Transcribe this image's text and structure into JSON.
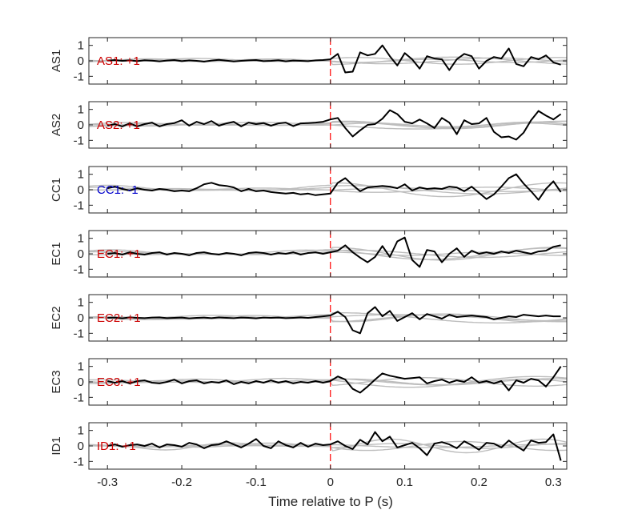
{
  "chart_data": {
    "type": "line",
    "xlabel": "Time relative to P (s)",
    "xlim": [
      -0.325,
      0.318
    ],
    "xticks": [
      -0.3,
      -0.2,
      -0.1,
      0,
      0.1,
      0.2,
      0.3
    ],
    "xtick_labels": [
      "-0.3",
      "-0.2",
      "-0.1",
      "0",
      "0.1",
      "0.2",
      "0.3"
    ],
    "ylim": [
      -1.5,
      1.5
    ],
    "yticks": [
      1,
      0,
      -1
    ],
    "ytick_labels": [
      "1",
      "0",
      "-1"
    ],
    "marker_line": {
      "x": 0,
      "color": "#ff0000",
      "style": "dashed"
    },
    "colors": {
      "primary": "#000000",
      "background_traces": "#bdbdbd",
      "positive_label": "#cc0000",
      "negative_label": "#0000cc"
    },
    "panels": [
      {
        "ylabel": "AS1",
        "label": "AS1: +1",
        "polarity": "positive",
        "x": [
          -0.3,
          -0.29,
          -0.28,
          -0.27,
          -0.26,
          -0.25,
          -0.24,
          -0.23,
          -0.22,
          -0.21,
          -0.2,
          -0.19,
          -0.18,
          -0.17,
          -0.16,
          -0.15,
          -0.14,
          -0.13,
          -0.12,
          -0.11,
          -0.1,
          -0.09,
          -0.08,
          -0.07,
          -0.06,
          -0.05,
          -0.04,
          -0.03,
          -0.02,
          -0.01,
          0.0,
          0.01,
          0.02,
          0.03,
          0.04,
          0.05,
          0.06,
          0.07,
          0.08,
          0.09,
          0.1,
          0.11,
          0.12,
          0.13,
          0.14,
          0.15,
          0.16,
          0.17,
          0.18,
          0.19,
          0.2,
          0.21,
          0.22,
          0.23,
          0.24,
          0.25,
          0.26,
          0.27,
          0.28,
          0.29,
          0.3,
          0.31
        ],
        "values": [
          0.02,
          0.05,
          0.0,
          0.03,
          -0.02,
          0.04,
          0.01,
          -0.03,
          0.02,
          0.05,
          -0.02,
          0.03,
          0.0,
          -0.05,
          0.02,
          0.06,
          0.01,
          -0.04,
          0.0,
          0.03,
          0.05,
          -0.02,
          0.0,
          0.04,
          -0.03,
          0.02,
          0.0,
          -0.02,
          0.03,
          0.05,
          0.1,
          0.45,
          -0.75,
          -0.7,
          0.55,
          0.35,
          0.45,
          1.0,
          0.3,
          -0.3,
          0.5,
          0.1,
          -0.5,
          0.3,
          0.15,
          0.1,
          -0.6,
          0.1,
          0.45,
          0.3,
          -0.5,
          0.0,
          0.25,
          0.15,
          0.8,
          -0.2,
          -0.35,
          0.25,
          0.1,
          0.35,
          -0.1,
          -0.25
        ]
      },
      {
        "ylabel": "AS2",
        "label": "AS2: +1",
        "polarity": "positive",
        "x": [
          -0.3,
          -0.29,
          -0.28,
          -0.27,
          -0.26,
          -0.25,
          -0.24,
          -0.23,
          -0.22,
          -0.21,
          -0.2,
          -0.19,
          -0.18,
          -0.17,
          -0.16,
          -0.15,
          -0.14,
          -0.13,
          -0.12,
          -0.11,
          -0.1,
          -0.09,
          -0.08,
          -0.07,
          -0.06,
          -0.05,
          -0.04,
          -0.03,
          -0.02,
          -0.01,
          0.0,
          0.01,
          0.02,
          0.03,
          0.04,
          0.05,
          0.06,
          0.07,
          0.08,
          0.09,
          0.1,
          0.11,
          0.12,
          0.13,
          0.14,
          0.15,
          0.16,
          0.17,
          0.18,
          0.19,
          0.2,
          0.21,
          0.22,
          0.23,
          0.24,
          0.25,
          0.26,
          0.27,
          0.28,
          0.29,
          0.3,
          0.31
        ],
        "values": [
          -0.05,
          0.05,
          -0.1,
          0.1,
          -0.1,
          0.05,
          0.15,
          -0.1,
          0.05,
          0.12,
          0.3,
          -0.05,
          0.2,
          0.05,
          0.25,
          -0.05,
          0.1,
          0.2,
          -0.1,
          0.15,
          0.05,
          0.12,
          -0.05,
          0.1,
          0.15,
          -0.08,
          0.1,
          0.12,
          0.15,
          0.2,
          0.35,
          0.45,
          -0.2,
          -0.75,
          -0.35,
          0.0,
          0.05,
          0.4,
          0.95,
          0.7,
          0.2,
          0.1,
          0.35,
          0.1,
          -0.2,
          0.45,
          0.15,
          -0.6,
          0.3,
          0.05,
          0.1,
          0.45,
          -0.45,
          -0.8,
          -0.75,
          -0.95,
          -0.5,
          0.3,
          0.9,
          0.6,
          0.35,
          0.7
        ]
      },
      {
        "ylabel": "CC1",
        "label": "CC1: -1",
        "polarity": "negative",
        "x": [
          -0.3,
          -0.29,
          -0.28,
          -0.27,
          -0.26,
          -0.25,
          -0.24,
          -0.23,
          -0.22,
          -0.21,
          -0.2,
          -0.19,
          -0.18,
          -0.17,
          -0.16,
          -0.15,
          -0.14,
          -0.13,
          -0.12,
          -0.11,
          -0.1,
          -0.09,
          -0.08,
          -0.07,
          -0.06,
          -0.05,
          -0.04,
          -0.03,
          -0.02,
          -0.01,
          0.0,
          0.01,
          0.02,
          0.03,
          0.04,
          0.05,
          0.06,
          0.07,
          0.08,
          0.09,
          0.1,
          0.11,
          0.12,
          0.13,
          0.14,
          0.15,
          0.16,
          0.17,
          0.18,
          0.19,
          0.2,
          0.21,
          0.22,
          0.23,
          0.24,
          0.25,
          0.26,
          0.27,
          0.28,
          0.29,
          0.3,
          0.31
        ],
        "values": [
          0.1,
          0.2,
          0.05,
          -0.05,
          0.1,
          0.0,
          -0.05,
          0.05,
          0.0,
          -0.1,
          -0.05,
          -0.1,
          0.1,
          0.35,
          0.45,
          0.3,
          0.25,
          0.15,
          -0.1,
          0.05,
          -0.1,
          -0.05,
          -0.15,
          -0.2,
          -0.25,
          -0.2,
          -0.3,
          -0.25,
          -0.35,
          -0.3,
          -0.25,
          0.45,
          0.75,
          0.3,
          -0.1,
          0.15,
          0.2,
          0.25,
          0.2,
          0.1,
          0.35,
          -0.05,
          0.15,
          0.05,
          0.1,
          0.05,
          0.2,
          0.15,
          -0.1,
          0.2,
          -0.2,
          -0.6,
          -0.3,
          0.2,
          0.75,
          1.0,
          0.4,
          -0.1,
          -0.65,
          0.05,
          0.55,
          -0.15
        ]
      },
      {
        "ylabel": "EC1",
        "label": "EC1: +1",
        "polarity": "positive",
        "x": [
          -0.3,
          -0.29,
          -0.28,
          -0.27,
          -0.26,
          -0.25,
          -0.24,
          -0.23,
          -0.22,
          -0.21,
          -0.2,
          -0.19,
          -0.18,
          -0.17,
          -0.16,
          -0.15,
          -0.14,
          -0.13,
          -0.12,
          -0.11,
          -0.1,
          -0.09,
          -0.08,
          -0.07,
          -0.06,
          -0.05,
          -0.04,
          -0.03,
          -0.02,
          -0.01,
          0.0,
          0.01,
          0.02,
          0.03,
          0.04,
          0.05,
          0.06,
          0.07,
          0.08,
          0.09,
          0.1,
          0.11,
          0.12,
          0.13,
          0.14,
          0.15,
          0.16,
          0.17,
          0.18,
          0.19,
          0.2,
          0.21,
          0.22,
          0.23,
          0.24,
          0.25,
          0.26,
          0.27,
          0.28,
          0.29,
          0.3,
          0.31
        ],
        "values": [
          0.0,
          0.05,
          -0.05,
          0.1,
          0.0,
          -0.05,
          0.05,
          0.1,
          -0.05,
          0.05,
          0.0,
          -0.1,
          0.05,
          0.1,
          0.0,
          -0.05,
          0.05,
          0.0,
          -0.1,
          0.05,
          0.1,
          0.05,
          -0.05,
          0.05,
          0.0,
          0.1,
          -0.05,
          0.05,
          0.1,
          0.0,
          0.1,
          0.2,
          0.55,
          0.1,
          -0.25,
          -0.55,
          -0.2,
          0.5,
          -0.2,
          0.8,
          1.05,
          -0.4,
          -0.85,
          0.25,
          0.15,
          -0.55,
          0.0,
          0.35,
          -0.2,
          0.2,
          0.0,
          0.1,
          0.0,
          0.15,
          0.05,
          0.2,
          0.1,
          0.0,
          0.15,
          0.2,
          0.45,
          0.55
        ]
      },
      {
        "ylabel": "EC2",
        "label": "EC2: +1",
        "polarity": "positive",
        "x": [
          -0.3,
          -0.29,
          -0.28,
          -0.27,
          -0.26,
          -0.25,
          -0.24,
          -0.23,
          -0.22,
          -0.21,
          -0.2,
          -0.19,
          -0.18,
          -0.17,
          -0.16,
          -0.15,
          -0.14,
          -0.13,
          -0.12,
          -0.11,
          -0.1,
          -0.09,
          -0.08,
          -0.07,
          -0.06,
          -0.05,
          -0.04,
          -0.03,
          -0.02,
          -0.01,
          0.0,
          0.01,
          0.02,
          0.03,
          0.04,
          0.05,
          0.06,
          0.07,
          0.08,
          0.09,
          0.1,
          0.11,
          0.12,
          0.13,
          0.14,
          0.15,
          0.16,
          0.17,
          0.18,
          0.19,
          0.2,
          0.21,
          0.22,
          0.23,
          0.24,
          0.25,
          0.26,
          0.27,
          0.28,
          0.29,
          0.3,
          0.31
        ],
        "values": [
          0.0,
          0.02,
          -0.03,
          0.03,
          0.0,
          -0.02,
          0.02,
          0.03,
          -0.02,
          0.0,
          0.02,
          -0.03,
          0.0,
          0.02,
          -0.02,
          0.03,
          0.0,
          -0.02,
          0.02,
          0.0,
          -0.03,
          0.02,
          0.0,
          0.02,
          -0.02,
          0.0,
          0.03,
          0.0,
          0.05,
          0.1,
          0.15,
          0.4,
          0.05,
          -0.8,
          -1.0,
          0.3,
          0.7,
          0.1,
          0.45,
          -0.2,
          0.05,
          0.3,
          -0.1,
          0.25,
          0.1,
          -0.05,
          0.2,
          0.05,
          0.1,
          0.15,
          0.1,
          0.05,
          -0.1,
          0.0,
          0.1,
          0.05,
          0.2,
          0.15,
          0.1,
          0.15,
          0.1,
          0.1
        ]
      },
      {
        "ylabel": "EC3",
        "label": "EC3: +1",
        "polarity": "positive",
        "x": [
          -0.3,
          -0.29,
          -0.28,
          -0.27,
          -0.26,
          -0.25,
          -0.24,
          -0.23,
          -0.22,
          -0.21,
          -0.2,
          -0.19,
          -0.18,
          -0.17,
          -0.16,
          -0.15,
          -0.14,
          -0.13,
          -0.12,
          -0.11,
          -0.1,
          -0.09,
          -0.08,
          -0.07,
          -0.06,
          -0.05,
          -0.04,
          -0.03,
          -0.02,
          -0.01,
          0.0,
          0.01,
          0.02,
          0.03,
          0.04,
          0.05,
          0.06,
          0.07,
          0.08,
          0.09,
          0.1,
          0.11,
          0.12,
          0.13,
          0.14,
          0.15,
          0.16,
          0.17,
          0.18,
          0.19,
          0.2,
          0.21,
          0.22,
          0.23,
          0.24,
          0.25,
          0.26,
          0.27,
          0.28,
          0.29,
          0.3,
          0.31
        ],
        "values": [
          0.05,
          -0.05,
          0.05,
          -0.1,
          0.05,
          0.1,
          -0.05,
          -0.1,
          0.0,
          0.15,
          -0.1,
          0.05,
          0.1,
          -0.1,
          0.0,
          -0.05,
          0.1,
          -0.15,
          0.0,
          -0.1,
          0.05,
          -0.05,
          0.1,
          -0.05,
          0.05,
          -0.1,
          0.0,
          -0.05,
          0.05,
          -0.05,
          0.05,
          0.35,
          0.15,
          -0.45,
          -0.7,
          -0.3,
          0.15,
          0.55,
          0.4,
          0.3,
          0.2,
          0.25,
          0.3,
          -0.1,
          0.05,
          0.15,
          -0.05,
          0.1,
          0.0,
          0.3,
          -0.05,
          0.05,
          -0.1,
          0.05,
          -0.55,
          0.1,
          -0.05,
          0.2,
          0.1,
          -0.3,
          0.3,
          1.0
        ]
      },
      {
        "ylabel": "ID1",
        "label": "ID1: +1",
        "polarity": "positive",
        "x": [
          -0.3,
          -0.29,
          -0.28,
          -0.27,
          -0.26,
          -0.25,
          -0.24,
          -0.23,
          -0.22,
          -0.21,
          -0.2,
          -0.19,
          -0.18,
          -0.17,
          -0.16,
          -0.15,
          -0.14,
          -0.13,
          -0.12,
          -0.11,
          -0.1,
          -0.09,
          -0.08,
          -0.07,
          -0.06,
          -0.05,
          -0.04,
          -0.03,
          -0.02,
          -0.01,
          0.0,
          0.01,
          0.02,
          0.03,
          0.04,
          0.05,
          0.06,
          0.07,
          0.08,
          0.09,
          0.1,
          0.11,
          0.12,
          0.13,
          0.14,
          0.15,
          0.16,
          0.17,
          0.18,
          0.19,
          0.2,
          0.21,
          0.22,
          0.23,
          0.24,
          0.25,
          0.26,
          0.27,
          0.28,
          0.29,
          0.3,
          0.31
        ],
        "values": [
          0.0,
          0.1,
          -0.05,
          0.05,
          0.1,
          0.0,
          0.15,
          -0.1,
          0.1,
          0.05,
          -0.05,
          0.2,
          0.1,
          -0.15,
          0.05,
          0.1,
          0.3,
          0.1,
          -0.1,
          0.15,
          0.45,
          0.0,
          -0.15,
          0.3,
          0.05,
          -0.1,
          0.2,
          -0.05,
          0.15,
          0.05,
          0.1,
          0.3,
          0.0,
          -0.2,
          0.4,
          0.1,
          0.9,
          0.3,
          0.6,
          -0.1,
          0.05,
          0.2,
          -0.15,
          -0.6,
          0.15,
          0.25,
          0.1,
          -0.15,
          0.3,
          0.05,
          -0.25,
          0.2,
          0.15,
          -0.1,
          0.35,
          0.0,
          -0.3,
          0.35,
          0.2,
          0.25,
          0.75,
          -0.95
        ]
      }
    ]
  }
}
